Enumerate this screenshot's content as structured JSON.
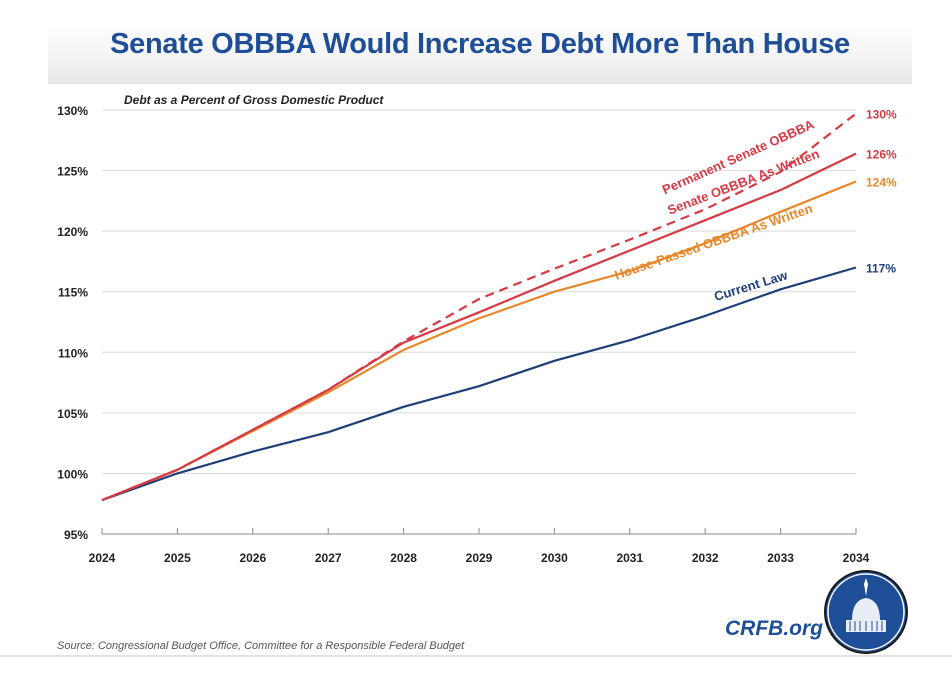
{
  "chart_data": {
    "type": "line",
    "title": "Senate OBBBA Would Increase Debt More Than House",
    "subtitle": "Debt as a Percent of Gross Domestic Product",
    "xlabel": "",
    "ylabel": "",
    "x": [
      2024,
      2025,
      2026,
      2027,
      2028,
      2029,
      2030,
      2031,
      2032,
      2033,
      2034
    ],
    "x_tick_labels": [
      "2024",
      "2025",
      "2026",
      "2027",
      "2028",
      "2029",
      "2030",
      "2031",
      "2032",
      "2033",
      "2034"
    ],
    "ylim": [
      95,
      130
    ],
    "y_tick_labels": [
      "95%",
      "100%",
      "105%",
      "110%",
      "115%",
      "120%",
      "125%",
      "130%"
    ],
    "y_ticks": [
      95,
      100,
      105,
      110,
      115,
      120,
      125,
      130
    ],
    "grid": "horizontal",
    "series": [
      {
        "name": "Current Law",
        "color": "#1f3f7a",
        "style": "solid",
        "end_label": "117%",
        "values": [
          97.8,
          100.0,
          101.8,
          103.4,
          105.5,
          107.2,
          109.3,
          111.0,
          113.0,
          115.2,
          117.0
        ]
      },
      {
        "name": "House-Passed OBBBA As Written",
        "color": "#e8872a",
        "style": "solid",
        "end_label": "124%",
        "values": [
          97.8,
          100.3,
          103.5,
          106.7,
          110.2,
          112.8,
          115.0,
          116.7,
          119.0,
          121.6,
          124.1
        ]
      },
      {
        "name": "Senate OBBBA As Written",
        "color": "#d63a45",
        "style": "solid",
        "end_label": "126%",
        "values": [
          97.8,
          100.3,
          103.6,
          106.9,
          110.8,
          113.3,
          115.9,
          118.4,
          120.9,
          123.4,
          126.4
        ]
      },
      {
        "name": "Permanent Senate OBBBA",
        "color": "#d63a45",
        "style": "dashed",
        "end_label": "130%",
        "values": [
          97.8,
          100.3,
          103.6,
          106.9,
          110.9,
          114.4,
          116.9,
          119.3,
          121.8,
          124.9,
          129.7
        ]
      }
    ]
  },
  "source": "Source: Congressional Budget Office, Committee for a Responsible Federal Budget",
  "logo_text": "CRFB.org"
}
